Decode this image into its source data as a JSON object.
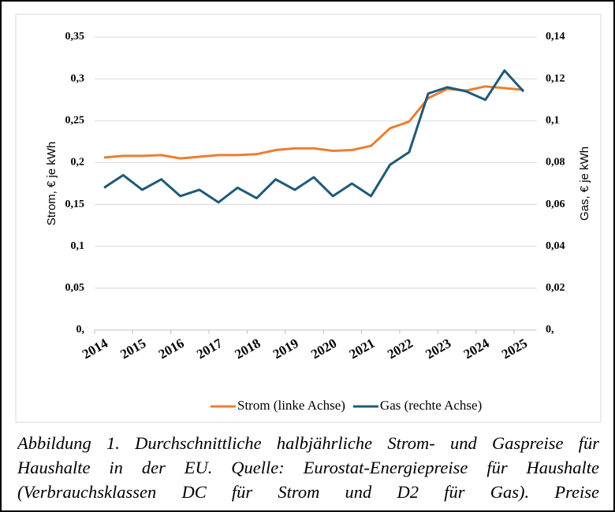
{
  "chart_data": {
    "type": "line",
    "categories": [
      "2014",
      null,
      "2015",
      null,
      "2016",
      null,
      "2017",
      null,
      "2018",
      null,
      "2019",
      null,
      "2020",
      null,
      "2021",
      null,
      "2022",
      null,
      "2023",
      null,
      "2024",
      null,
      "2025"
    ],
    "series": [
      {
        "name": "Strom (linke Achse)",
        "color": "#ED7D31",
        "values": [
          0.206,
          0.208,
          0.208,
          0.209,
          0.205,
          0.207,
          0.209,
          0.209,
          0.21,
          0.215,
          0.217,
          0.217,
          0.214,
          0.215,
          0.22,
          0.241,
          0.249,
          0.277,
          0.288,
          0.286,
          0.291,
          0.289,
          0.287
        ]
      },
      {
        "name": "Gas (rechte Achse)",
        "color": "#1F5A78",
        "axis": "y2",
        "values": [
          0.068,
          0.074,
          0.067,
          0.072,
          0.064,
          0.067,
          0.061,
          0.068,
          0.063,
          0.072,
          0.067,
          0.073,
          0.064,
          0.07,
          0.064,
          0.079,
          0.085,
          0.113,
          0.116,
          0.114,
          0.11,
          0.124,
          0.114
        ]
      }
    ],
    "ylabel": "Strom, € je kWh",
    "y2label": "Gas, € je kWh",
    "ylim": [
      0,
      0.35
    ],
    "yticks": [
      {
        "value": 0,
        "label": "0,"
      },
      {
        "value": 0.05,
        "label": "0,05"
      },
      {
        "value": 0.1,
        "label": "0,1"
      },
      {
        "value": 0.15,
        "label": "0,15"
      },
      {
        "value": 0.2,
        "label": "0,2"
      },
      {
        "value": 0.25,
        "label": "0,25"
      },
      {
        "value": 0.3,
        "label": "0,3"
      },
      {
        "value": 0.35,
        "label": "0,35"
      }
    ],
    "y2lim": [
      0,
      0.14
    ],
    "y2ticks": [
      {
        "value": 0,
        "label": "0,"
      },
      {
        "value": 0.02,
        "label": "0,02"
      },
      {
        "value": 0.04,
        "label": "0,04"
      },
      {
        "value": 0.06,
        "label": "0,06"
      },
      {
        "value": 0.08,
        "label": "0,08"
      },
      {
        "value": 0.1,
        "label": "0,1"
      },
      {
        "value": 0.12,
        "label": "0,12"
      },
      {
        "value": 0.14,
        "label": "0,14"
      }
    ],
    "grid": true,
    "legend": "bottom",
    "caption": "Abbildung 1. Durchschnittliche halbjährliche Strom- und Gaspreise für Haushalte in der EU. Quelle: Eurostat-Energiepreise für Haushalte (Verbrauchsklassen DC für Strom und D2 für Gas). Preise"
  }
}
